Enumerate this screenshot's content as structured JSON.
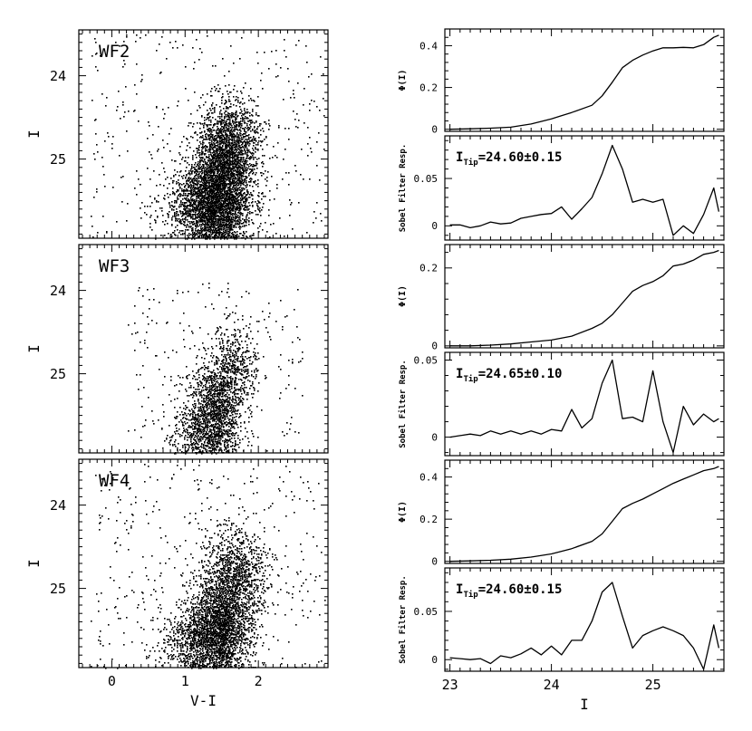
{
  "chart_data": [
    {
      "type": "scatter",
      "panel": "cmd",
      "field": "WF2",
      "xlabel": "",
      "ylabel": "I",
      "xlim": [
        -0.45,
        2.95
      ],
      "ylim": [
        25.95,
        23.45
      ],
      "x_ticks": [
        0,
        1,
        2
      ],
      "y_ticks": [
        24,
        25
      ],
      "clusters": [
        {
          "center": [
            1.45,
            25.45
          ],
          "spread": [
            0.22,
            0.35
          ],
          "count": 3200
        },
        {
          "center": [
            1.6,
            24.85
          ],
          "spread": [
            0.2,
            0.28
          ],
          "count": 1500
        },
        {
          "center": [
            1.25,
            25.6
          ],
          "spread": [
            0.3,
            0.25
          ],
          "count": 1200
        }
      ],
      "field_stars": {
        "xrange": [
          -0.3,
          2.9
        ],
        "yrange": [
          23.5,
          25.95
        ],
        "count": 350
      }
    },
    {
      "type": "scatter",
      "panel": "cmd",
      "field": "WF3",
      "xlabel": "",
      "ylabel": "I",
      "xlim": [
        -0.45,
        2.95
      ],
      "ylim": [
        25.95,
        23.45
      ],
      "x_ticks": [
        0,
        1,
        2
      ],
      "y_ticks": [
        24,
        25
      ],
      "clusters": [
        {
          "center": [
            1.4,
            25.45
          ],
          "spread": [
            0.18,
            0.32
          ],
          "count": 1300
        },
        {
          "center": [
            1.65,
            24.95
          ],
          "spread": [
            0.15,
            0.25
          ],
          "count": 500
        },
        {
          "center": [
            1.2,
            25.7
          ],
          "spread": [
            0.2,
            0.2
          ],
          "count": 500
        }
      ],
      "field_stars": {
        "xrange": [
          0.2,
          2.6
        ],
        "yrange": [
          23.9,
          25.95
        ],
        "count": 260
      }
    },
    {
      "type": "scatter",
      "panel": "cmd",
      "field": "WF4",
      "xlabel": "V-I",
      "ylabel": "I",
      "xlim": [
        -0.45,
        2.95
      ],
      "ylim": [
        25.95,
        23.45
      ],
      "x_ticks": [
        0,
        1,
        2
      ],
      "y_ticks": [
        24,
        25
      ],
      "clusters": [
        {
          "center": [
            1.45,
            25.45
          ],
          "spread": [
            0.22,
            0.35
          ],
          "count": 2300
        },
        {
          "center": [
            1.7,
            24.85
          ],
          "spread": [
            0.2,
            0.3
          ],
          "count": 1000
        },
        {
          "center": [
            1.25,
            25.65
          ],
          "spread": [
            0.3,
            0.22
          ],
          "count": 900
        }
      ],
      "field_stars": {
        "xrange": [
          -0.3,
          2.9
        ],
        "yrange": [
          23.5,
          25.95
        ],
        "count": 380
      }
    },
    {
      "type": "line",
      "panel": "phi",
      "field": "WF2",
      "ylabel": "Φ(I)",
      "xlim": [
        22.95,
        25.7
      ],
      "ylim": [
        -0.01,
        0.48
      ],
      "x_ticks": [
        23,
        24,
        25
      ],
      "y_ticks": [
        0,
        0.2,
        0.4
      ],
      "y_tick_labels": [
        "0",
        "0.2",
        "0.4"
      ],
      "x": [
        23.0,
        23.2,
        23.4,
        23.6,
        23.8,
        24.0,
        24.2,
        24.4,
        24.5,
        24.6,
        24.7,
        24.8,
        24.9,
        25.0,
        25.1,
        25.2,
        25.3,
        25.4,
        25.5,
        25.6,
        25.65
      ],
      "y": [
        0.0,
        0.002,
        0.005,
        0.01,
        0.025,
        0.05,
        0.08,
        0.115,
        0.16,
        0.225,
        0.295,
        0.33,
        0.355,
        0.375,
        0.39,
        0.39,
        0.392,
        0.39,
        0.405,
        0.44,
        0.45
      ]
    },
    {
      "type": "line",
      "panel": "sobel",
      "field": "WF2",
      "ylabel": "Sobel Filter Resp.",
      "annotation": "I_Tip=24.60±0.15",
      "annotation_main": "I",
      "annotation_sub": "Tip",
      "annotation_rest": "=24.60±0.15",
      "xlim": [
        22.95,
        25.7
      ],
      "ylim": [
        -0.015,
        0.095
      ],
      "x_ticks": [
        23,
        24,
        25
      ],
      "y_ticks": [
        0,
        0.05
      ],
      "y_tick_labels": [
        "0",
        "0.05"
      ],
      "x": [
        23.0,
        23.1,
        23.2,
        23.3,
        23.4,
        23.5,
        23.6,
        23.7,
        23.8,
        23.9,
        24.0,
        24.1,
        24.2,
        24.3,
        24.4,
        24.5,
        24.6,
        24.7,
        24.8,
        24.9,
        25.0,
        25.1,
        25.2,
        25.3,
        25.4,
        25.5,
        25.6,
        25.65
      ],
      "y": [
        0.001,
        0.001,
        -0.002,
        0.0,
        0.004,
        0.002,
        0.003,
        0.008,
        0.01,
        0.012,
        0.013,
        0.02,
        0.007,
        0.018,
        0.03,
        0.055,
        0.085,
        0.06,
        0.025,
        0.028,
        0.025,
        0.028,
        -0.01,
        0.0,
        -0.008,
        0.012,
        0.04,
        0.015
      ]
    },
    {
      "type": "line",
      "panel": "phi",
      "field": "WF3",
      "ylabel": "Φ(I)",
      "xlim": [
        22.95,
        25.7
      ],
      "ylim": [
        -0.005,
        0.26
      ],
      "x_ticks": [
        23,
        24,
        25
      ],
      "y_ticks": [
        0,
        0.2
      ],
      "y_tick_labels": [
        "0",
        "0.2"
      ],
      "x": [
        23.0,
        23.2,
        23.4,
        23.6,
        23.8,
        24.0,
        24.2,
        24.4,
        24.5,
        24.6,
        24.7,
        24.8,
        24.9,
        25.0,
        25.1,
        25.2,
        25.3,
        25.4,
        25.5,
        25.6,
        25.65
      ],
      "y": [
        0.0,
        0.0,
        0.002,
        0.005,
        0.01,
        0.015,
        0.025,
        0.045,
        0.058,
        0.08,
        0.11,
        0.14,
        0.155,
        0.165,
        0.18,
        0.205,
        0.21,
        0.22,
        0.235,
        0.24,
        0.245
      ]
    },
    {
      "type": "line",
      "panel": "sobel",
      "field": "WF3",
      "ylabel": "Sobel Filter Resp.",
      "annotation": "I_Tip=24.65±0.10",
      "annotation_main": "I",
      "annotation_sub": "Tip",
      "annotation_rest": "=24.65±0.10",
      "xlim": [
        22.95,
        25.7
      ],
      "ylim": [
        -0.012,
        0.055
      ],
      "x_ticks": [
        23,
        24,
        25
      ],
      "y_ticks": [
        0,
        0.05
      ],
      "y_tick_labels": [
        "0",
        "0.05"
      ],
      "x": [
        23.0,
        23.1,
        23.2,
        23.3,
        23.4,
        23.5,
        23.6,
        23.7,
        23.8,
        23.9,
        24.0,
        24.1,
        24.2,
        24.3,
        24.4,
        24.5,
        24.6,
        24.7,
        24.8,
        24.9,
        25.0,
        25.1,
        25.2,
        25.3,
        25.4,
        25.5,
        25.6,
        25.65
      ],
      "y": [
        0.0,
        0.001,
        0.002,
        0.001,
        0.004,
        0.002,
        0.004,
        0.002,
        0.004,
        0.002,
        0.005,
        0.004,
        0.018,
        0.006,
        0.012,
        0.035,
        0.05,
        0.012,
        0.013,
        0.01,
        0.043,
        0.01,
        -0.01,
        0.02,
        0.008,
        0.015,
        0.01,
        0.012
      ]
    },
    {
      "type": "line",
      "panel": "phi",
      "field": "WF4",
      "ylabel": "Φ(I)",
      "xlim": [
        22.95,
        25.7
      ],
      "ylim": [
        -0.01,
        0.48
      ],
      "x_ticks": [
        23,
        24,
        25
      ],
      "y_ticks": [
        0,
        0.2,
        0.4
      ],
      "y_tick_labels": [
        "0",
        "0.2",
        "0.4"
      ],
      "x": [
        23.0,
        23.2,
        23.4,
        23.6,
        23.8,
        24.0,
        24.2,
        24.4,
        24.5,
        24.6,
        24.7,
        24.8,
        24.9,
        25.0,
        25.1,
        25.2,
        25.3,
        25.4,
        25.5,
        25.6,
        25.65
      ],
      "y": [
        0.0,
        0.002,
        0.005,
        0.01,
        0.02,
        0.035,
        0.06,
        0.095,
        0.13,
        0.19,
        0.25,
        0.275,
        0.295,
        0.32,
        0.345,
        0.37,
        0.39,
        0.41,
        0.43,
        0.44,
        0.45
      ]
    },
    {
      "type": "line",
      "panel": "sobel",
      "field": "WF4",
      "ylabel": "Sobel Filter Resp.",
      "xlabel": "I",
      "annotation": "I_Tip=24.60±0.15",
      "annotation_main": "I",
      "annotation_sub": "Tip",
      "annotation_rest": "=24.60±0.15",
      "xlim": [
        22.95,
        25.7
      ],
      "ylim": [
        -0.012,
        0.095
      ],
      "x_ticks": [
        23,
        24,
        25
      ],
      "x_tick_labels": [
        "23",
        "24",
        "25"
      ],
      "y_ticks": [
        0,
        0.05
      ],
      "y_tick_labels": [
        "0",
        "0.05"
      ],
      "x": [
        23.0,
        23.1,
        23.2,
        23.3,
        23.4,
        23.5,
        23.6,
        23.7,
        23.8,
        23.9,
        24.0,
        24.1,
        24.2,
        24.3,
        24.4,
        24.5,
        24.6,
        24.7,
        24.8,
        24.9,
        25.0,
        25.1,
        25.2,
        25.3,
        25.4,
        25.5,
        25.6,
        25.65
      ],
      "y": [
        0.002,
        0.001,
        0.0,
        0.001,
        -0.004,
        0.004,
        0.002,
        0.006,
        0.012,
        0.005,
        0.014,
        0.005,
        0.02,
        0.02,
        0.04,
        0.07,
        0.08,
        0.045,
        0.012,
        0.025,
        0.03,
        0.034,
        0.03,
        0.025,
        0.012,
        -0.01,
        0.036,
        0.012
      ]
    }
  ]
}
